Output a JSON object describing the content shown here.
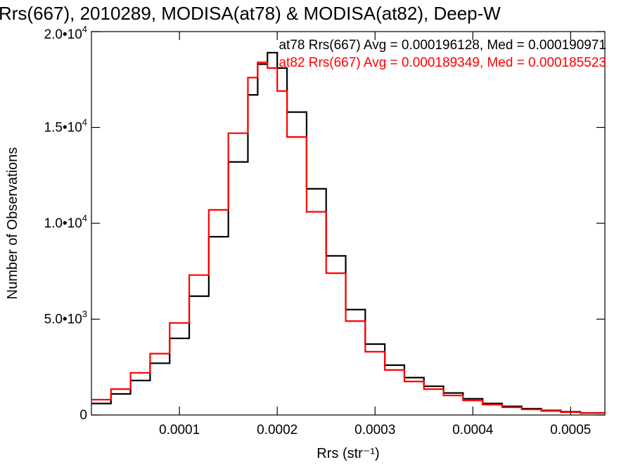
{
  "chart_data": {
    "type": "line",
    "title": "Rrs(667), 2010289, MODISA(at78) & MODISA(at82), Deep-W",
    "xlabel": "Rrs (str⁻¹)",
    "ylabel": "Number of Observations",
    "xlim": [
      1e-05,
      0.000535
    ],
    "ylim": [
      0,
      20000
    ],
    "x_ticks": [
      {
        "value": 0.0001,
        "label": "0.0001"
      },
      {
        "value": 0.0002,
        "label": "0.0002"
      },
      {
        "value": 0.0003,
        "label": "0.0003"
      },
      {
        "value": 0.0004,
        "label": "0.0004"
      },
      {
        "value": 0.0005,
        "label": "0.0005"
      }
    ],
    "y_ticks": [
      {
        "value": 0,
        "mantissa": "0",
        "exponent": ""
      },
      {
        "value": 5000,
        "mantissa": "5.0•10",
        "exponent": "3"
      },
      {
        "value": 10000,
        "mantissa": "1.0•10",
        "exponent": "4"
      },
      {
        "value": 15000,
        "mantissa": "1.5•10",
        "exponent": "4"
      },
      {
        "value": 20000,
        "mantissa": "2.0•10",
        "exponent": "4"
      }
    ],
    "grid": false,
    "legend_position": "top-right",
    "series": [
      {
        "key": "at78",
        "color": "#000000",
        "legend": "at78 Rrs(667) Avg = 0.000196128, Med = 0.000190971",
        "x": [
          1e-05,
          3e-05,
          5e-05,
          7e-05,
          9e-05,
          0.00011,
          0.00013,
          0.00015,
          0.00017,
          0.00018,
          0.00019,
          0.0002,
          0.00021,
          0.00023,
          0.00025,
          0.00027,
          0.00029,
          0.00031,
          0.00033,
          0.00035,
          0.00037,
          0.00039,
          0.00041,
          0.00043,
          0.00045,
          0.00047,
          0.00049,
          0.00051,
          0.000535
        ],
        "y": [
          600,
          1100,
          1800,
          2700,
          4000,
          6200,
          9300,
          13200,
          16700,
          18300,
          18900,
          18100,
          15800,
          11800,
          8300,
          5500,
          3700,
          2600,
          1950,
          1500,
          1150,
          850,
          600,
          450,
          330,
          240,
          170,
          110,
          60
        ]
      },
      {
        "key": "at82",
        "color": "#ff0000",
        "legend": "at82 Rrs(667) Avg = 0.000189349, Med = 0.000185523",
        "x": [
          1e-05,
          3e-05,
          5e-05,
          7e-05,
          9e-05,
          0.00011,
          0.00013,
          0.00015,
          0.00017,
          0.00018,
          0.00019,
          0.0002,
          0.00021,
          0.00023,
          0.00025,
          0.00027,
          0.00029,
          0.00031,
          0.00033,
          0.00035,
          0.00037,
          0.00039,
          0.00041,
          0.00043,
          0.00045,
          0.00047,
          0.00049,
          0.00051,
          0.000535
        ],
        "y": [
          800,
          1350,
          2200,
          3200,
          4800,
          7300,
          10700,
          14700,
          17600,
          18400,
          18100,
          16900,
          14500,
          10600,
          7400,
          4900,
          3300,
          2350,
          1750,
          1350,
          1020,
          760,
          540,
          400,
          290,
          210,
          150,
          100,
          50
        ]
      }
    ]
  }
}
